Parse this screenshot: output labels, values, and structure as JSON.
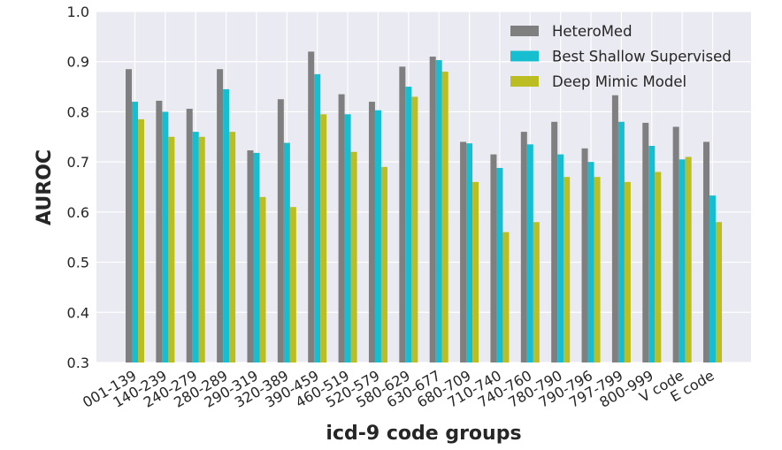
{
  "chart_data": {
    "type": "bar",
    "title": "",
    "xlabel": "icd-9 code groups",
    "ylabel": "AUROC",
    "ylim": [
      0.3,
      1.0
    ],
    "yticks": [
      "0.3",
      "0.4",
      "0.5",
      "0.6",
      "0.7",
      "0.8",
      "0.9",
      "1.0"
    ],
    "grid": true,
    "legend_position": "top-right",
    "categories": [
      "001-139",
      "140-239",
      "240-279",
      "280-289",
      "290-319",
      "320-389",
      "390-459",
      "460-519",
      "520-579",
      "580-629",
      "630-677",
      "680-709",
      "710-740",
      "740-760",
      "780-790",
      "790-796",
      "797-799",
      "800-999",
      "V code",
      "E code"
    ],
    "series": [
      {
        "name": "HeteroMed",
        "color": "#7f7f7f",
        "values": [
          0.885,
          0.822,
          0.806,
          0.885,
          0.723,
          0.825,
          0.92,
          0.835,
          0.82,
          0.89,
          0.91,
          0.74,
          0.715,
          0.76,
          0.78,
          0.727,
          0.833,
          0.778,
          0.77,
          0.74
        ]
      },
      {
        "name": "Best Shallow Supervised",
        "color": "#17becf",
        "values": [
          0.82,
          0.8,
          0.76,
          0.845,
          0.718,
          0.738,
          0.875,
          0.795,
          0.803,
          0.85,
          0.903,
          0.737,
          0.688,
          0.735,
          0.715,
          0.7,
          0.78,
          0.732,
          0.705,
          0.633
        ]
      },
      {
        "name": "Deep Mimic Model",
        "color": "#bcbd22",
        "values": [
          0.785,
          0.75,
          0.75,
          0.76,
          0.63,
          0.61,
          0.795,
          0.72,
          0.69,
          0.83,
          0.88,
          0.66,
          0.56,
          0.58,
          0.67,
          0.67,
          0.66,
          0.68,
          0.71,
          0.58
        ]
      }
    ]
  }
}
